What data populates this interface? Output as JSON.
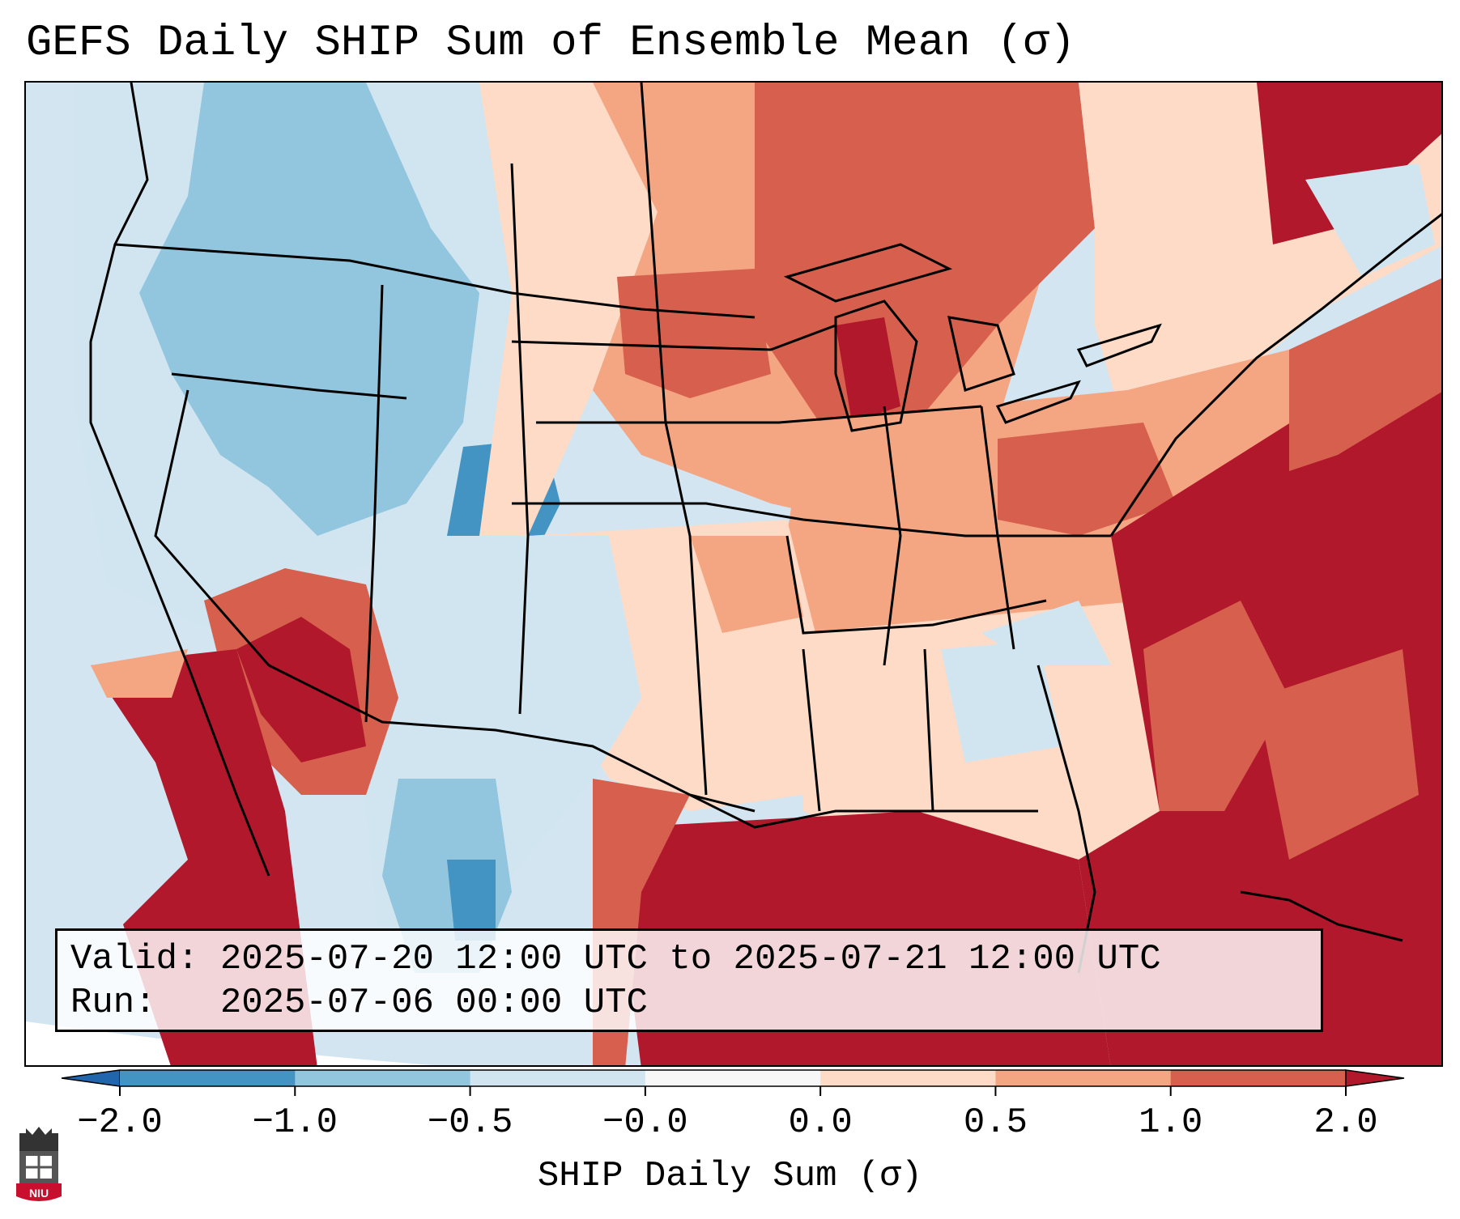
{
  "title": "GEFS Daily SHIP Sum of Ensemble Mean (σ)",
  "info": {
    "valid_label": "Valid:",
    "valid_value": "2025-07-20 12:00 UTC to 2025-07-21 12:00 UTC",
    "run_label": "Run:",
    "run_value": "2025-07-06 00:00 UTC"
  },
  "colorbar": {
    "label": "SHIP Daily Sum (σ)",
    "ticks": [
      "−2.0",
      "−1.0",
      "−0.5",
      "−0.0",
      "0.0",
      "0.5",
      "1.0",
      "2.0"
    ],
    "colors": [
      "#4393c3",
      "#92c5de",
      "#d1e5f0",
      "#f7f7f7",
      "#fddbc7",
      "#f4a582",
      "#d6604d",
      "#b2182b"
    ],
    "under_color": "#2166ac",
    "over_color": "#67001f"
  },
  "logo": {
    "text": "NIU",
    "color": "#c8102e"
  }
}
